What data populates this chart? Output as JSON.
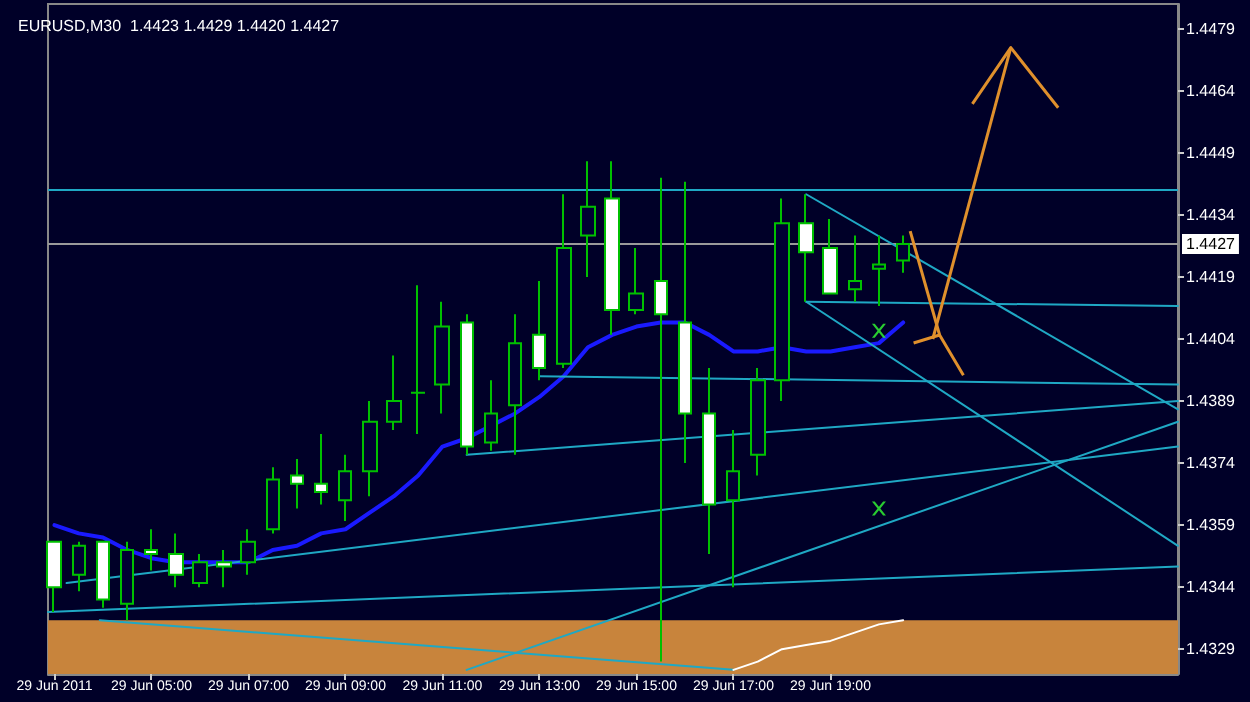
{
  "chart_data": {
    "type": "candlestick",
    "title": "EURUSD,M30  1.4423 1.4429 1.4420 1.4427",
    "x": [
      "2011-06-29T03:00",
      "2011-06-29T03:30",
      "2011-06-29T04:00",
      "2011-06-29T04:30",
      "2011-06-29T05:00",
      "2011-06-29T05:30",
      "2011-06-29T06:00",
      "2011-06-29T06:30",
      "2011-06-29T07:00",
      "2011-06-29T07:30",
      "2011-06-29T08:00",
      "2011-06-29T08:30",
      "2011-06-29T09:00",
      "2011-06-29T09:30",
      "2011-06-29T10:00",
      "2011-06-29T10:30",
      "2011-06-29T11:00",
      "2011-06-29T11:30",
      "2011-06-29T12:00",
      "2011-06-29T12:30",
      "2011-06-29T13:00",
      "2011-06-29T13:30",
      "2011-06-29T14:00",
      "2011-06-29T14:30",
      "2011-06-29T15:00",
      "2011-06-29T15:30",
      "2011-06-29T16:00",
      "2011-06-29T16:30",
      "2011-06-29T17:00",
      "2011-06-29T17:30",
      "2011-06-29T18:00",
      "2011-06-29T18:30",
      "2011-06-29T19:00",
      "2011-06-29T19:30",
      "2011-06-29T20:00",
      "2011-06-29T20:30"
    ],
    "series": [
      {
        "ohlc": [
          [
            1.4355,
            1.4355,
            1.4338,
            1.4344
          ],
          [
            1.4347,
            1.4355,
            1.4343,
            1.4354
          ],
          [
            1.4355,
            1.4355,
            1.4339,
            1.4341
          ],
          [
            1.434,
            1.4355,
            1.4336,
            1.4353
          ],
          [
            1.4353,
            1.4358,
            1.4348,
            1.4352
          ],
          [
            1.4352,
            1.4357,
            1.4344,
            1.4347
          ],
          [
            1.4345,
            1.4352,
            1.4344,
            1.435
          ],
          [
            1.435,
            1.4353,
            1.4344,
            1.4349
          ],
          [
            1.435,
            1.4358,
            1.4347,
            1.4355
          ],
          [
            1.4358,
            1.4373,
            1.4357,
            1.437
          ],
          [
            1.4371,
            1.4375,
            1.4363,
            1.4369
          ],
          [
            1.4369,
            1.4381,
            1.4364,
            1.4367
          ],
          [
            1.4365,
            1.4376,
            1.436,
            1.4372
          ],
          [
            1.4372,
            1.4389,
            1.4366,
            1.4384
          ],
          [
            1.4384,
            1.44,
            1.4382,
            1.4389
          ],
          [
            1.4391,
            1.4417,
            1.4381,
            1.4391
          ],
          [
            1.4393,
            1.4413,
            1.4386,
            1.4407
          ],
          [
            1.4408,
            1.441,
            1.4376,
            1.4378
          ],
          [
            1.4379,
            1.4394,
            1.4377,
            1.4386
          ],
          [
            1.4388,
            1.441,
            1.4376,
            1.4403
          ],
          [
            1.4405,
            1.4418,
            1.4394,
            1.4397
          ],
          [
            1.4398,
            1.4439,
            1.4397,
            1.4426
          ],
          [
            1.4429,
            1.4447,
            1.4419,
            1.4436
          ],
          [
            1.4438,
            1.4447,
            1.4405,
            1.4411
          ],
          [
            1.4411,
            1.4426,
            1.441,
            1.4415
          ],
          [
            1.4418,
            1.4443,
            1.4326,
            1.441
          ],
          [
            1.4408,
            1.4442,
            1.4374,
            1.4386
          ],
          [
            1.4386,
            1.4397,
            1.4352,
            1.4364
          ],
          [
            1.4365,
            1.4382,
            1.4344,
            1.4372
          ],
          [
            1.4376,
            1.4397,
            1.4371,
            1.4394
          ],
          [
            1.4394,
            1.4438,
            1.4389,
            1.4432
          ],
          [
            1.4432,
            1.4439,
            1.4413,
            1.4425
          ],
          [
            1.4426,
            1.4433,
            1.4415,
            1.4415
          ],
          [
            1.4416,
            1.4429,
            1.4413,
            1.4418
          ],
          [
            1.4421,
            1.4429,
            1.4412,
            1.4422
          ],
          [
            1.4423,
            1.4429,
            1.442,
            1.4427
          ]
        ],
        "colors": [
          "#ffffff",
          "#000033",
          "#ffffff",
          "#000033",
          "#ffffff",
          "#ffffff",
          "#000033",
          "#ffffff",
          "#000033",
          "#000033",
          "#ffffff",
          "#ffffff",
          "#000033",
          "#000033",
          "#000033",
          "#00c000",
          "#000033",
          "#ffffff",
          "#000033",
          "#000033",
          "#ffffff",
          "#000033",
          "#000033",
          "#ffffff",
          "#000033",
          "#ffffff",
          "#ffffff",
          "#ffffff",
          "#000033",
          "#000033",
          "#000033",
          "#ffffff",
          "#ffffff",
          "#000033",
          "#000033",
          "#000033"
        ]
      },
      {
        "type": "line",
        "color": "#1a1aff",
        "values": [
          1.4359,
          1.4357,
          1.4356,
          1.4353,
          1.4351,
          1.435,
          1.435,
          1.435,
          1.435,
          1.4353,
          1.4354,
          1.4357,
          1.4358,
          1.4362,
          1.4366,
          1.4371,
          1.4378,
          1.438,
          1.4383,
          1.4386,
          1.439,
          1.4395,
          1.4402,
          1.4405,
          1.4407,
          1.4408,
          1.4408,
          1.4405,
          1.4401,
          1.4401,
          1.4402,
          1.4401,
          1.4401,
          1.4402,
          1.4403,
          1.4408
        ]
      },
      {
        "type": "line",
        "color": "#1fa8c4",
        "x": [
          "2011-06-29T03:15",
          "2011-06-30T02:10"
        ],
        "values": [
          1.4345,
          1.4378
        ]
      },
      {
        "type": "line",
        "color": "#1fa8c4",
        "x": [
          "2011-06-29T02:52",
          "2011-06-30T02:10"
        ],
        "values": [
          1.4338,
          1.4349
        ]
      },
      {
        "type": "line",
        "color": "#1fa8c4",
        "x": [
          "2011-06-29T11:30",
          "2011-06-30T02:10"
        ],
        "values": [
          1.4376,
          1.4389
        ]
      },
      {
        "type": "line",
        "color": "#1fa8c4",
        "x": [
          "2011-06-29T13:00",
          "2011-06-30T02:10"
        ],
        "values": [
          1.4395,
          1.4393
        ]
      },
      {
        "type": "line",
        "color": "#1fa8c4",
        "x": [
          "2011-06-29T11:30",
          "2011-06-30T02:10"
        ],
        "values": [
          1.4324,
          1.4384
        ]
      },
      {
        "type": "line",
        "color": "#1fa8c4",
        "x": [
          "2011-06-29T18:30",
          "2011-06-30T02:10"
        ],
        "values": [
          1.4439,
          1.4387
        ]
      },
      {
        "type": "line",
        "color": "#1fa8c4",
        "x": [
          "2011-06-29T18:30",
          "2011-06-30T02:10"
        ],
        "values": [
          1.4413,
          1.4412
        ]
      },
      {
        "type": "line",
        "color": "#1fa8c4",
        "x": [
          "2011-06-29T18:30",
          "2011-06-30T02:10"
        ],
        "values": [
          1.4413,
          1.4354
        ]
      },
      {
        "type": "line",
        "color": "#1fa8c4",
        "x": [
          "2011-06-29T03:56",
          "2011-06-29T17:00"
        ],
        "values": [
          1.4336,
          1.4324
        ]
      },
      {
        "type": "line",
        "color": "#ffffff",
        "x": [
          "2011-06-29T17:00",
          "2011-06-29T17:30",
          "2011-06-29T18:00",
          "2011-06-29T18:30",
          "2011-06-29T19:00",
          "2011-06-29T19:30",
          "2011-06-29T20:00",
          "2011-06-29T20:30"
        ],
        "values": [
          1.4324,
          1.4326,
          1.4329,
          1.433,
          1.4331,
          1.4333,
          1.4335,
          1.4336
        ]
      },
      {
        "type": "scatter",
        "color": "#33ff33",
        "marker": "cross",
        "x": [
          "2011-06-29T20:00",
          "2011-06-29T20:00"
        ],
        "values": [
          1.4406,
          1.4363
        ]
      }
    ],
    "ref_lines": [
      {
        "axis": "y",
        "value": 1.444,
        "label": null,
        "color": "#1fa8c4"
      },
      {
        "axis": "y",
        "value": 1.4427,
        "label": "1.4427",
        "color": "#9a9a9a"
      }
    ],
    "bands": [
      {
        "axis": "y",
        "from": 1.4323,
        "to": 1.4336,
        "label": null,
        "color": "#c8843c"
      }
    ],
    "xlim": [
      "2011-06-29T02:52",
      "2011-06-30T02:10"
    ],
    "xticks": [
      {
        "value": "2011-06-29T03:00",
        "label": "29 Jun 2011"
      },
      {
        "value": "2011-06-29T05:00",
        "label": "29 Jun 05:00"
      },
      {
        "value": "2011-06-29T07:00",
        "label": "29 Jun 07:00"
      },
      {
        "value": "2011-06-29T09:00",
        "label": "29 Jun 09:00"
      },
      {
        "value": "2011-06-29T11:00",
        "label": "29 Jun 11:00"
      },
      {
        "value": "2011-06-29T13:00",
        "label": "29 Jun 13:00"
      },
      {
        "value": "2011-06-29T15:00",
        "label": "29 Jun 15:00"
      },
      {
        "value": "2011-06-29T17:00",
        "label": "29 Jun 17:00"
      },
      {
        "value": "2011-06-29T19:00",
        "label": "29 Jun 19:00"
      }
    ],
    "ylim": [
      1.4323,
      1.4485
    ],
    "yticks": [
      1.4329,
      1.4344,
      1.4359,
      1.4374,
      1.4389,
      1.4404,
      1.4419,
      1.4434,
      1.4449,
      1.4464,
      1.4479
    ],
    "grid": false
  }
}
